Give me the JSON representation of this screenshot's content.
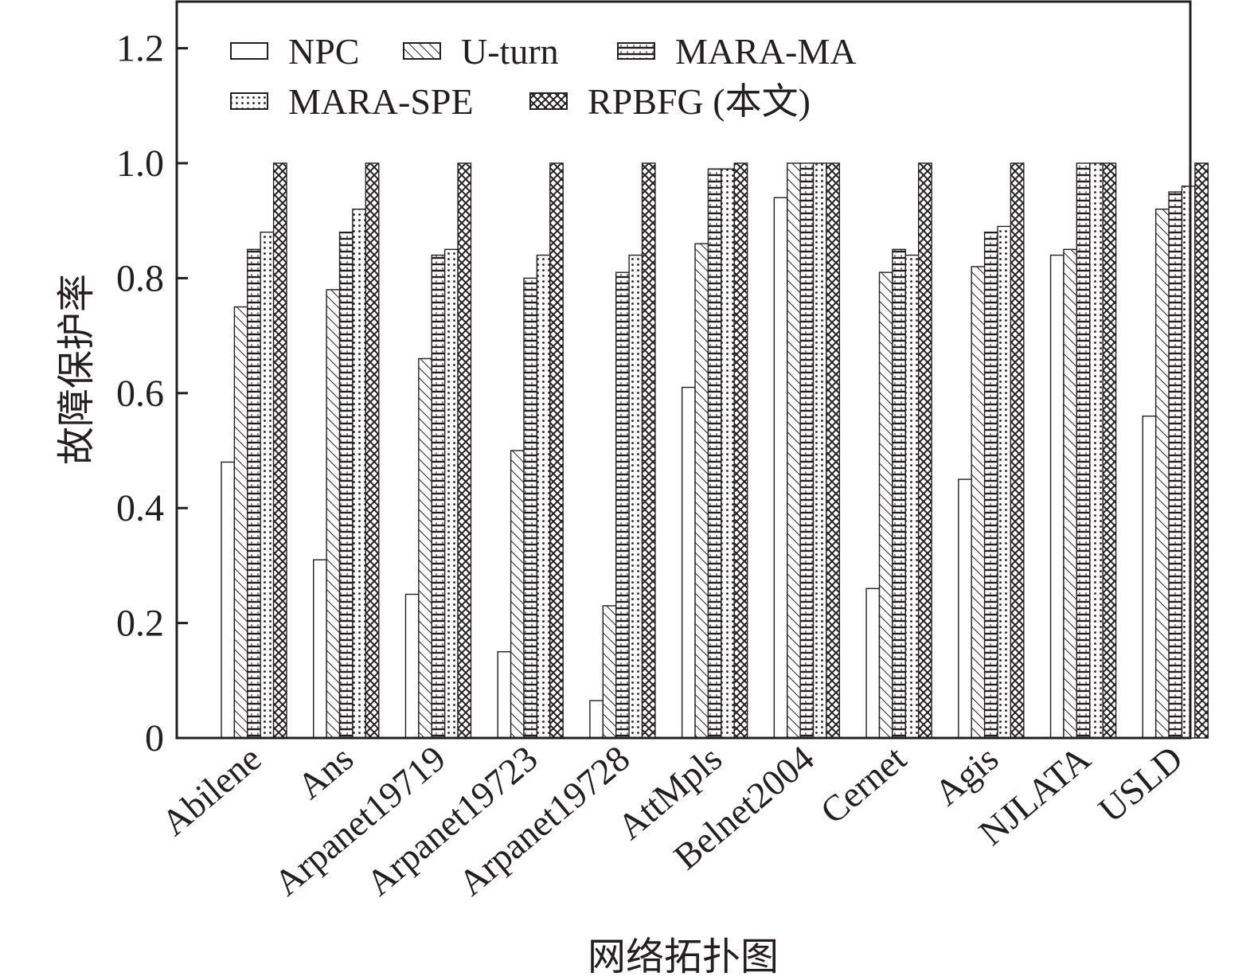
{
  "chart_data": {
    "type": "bar",
    "title": "",
    "xlabel": "网络拓扑图",
    "ylabel": "故障保护率",
    "ylim": [
      0,
      1.2
    ],
    "yticks": [
      0,
      0.2,
      0.4,
      0.6,
      0.8,
      1.0,
      1.2
    ],
    "ytick_labels": [
      "0",
      "0.2",
      "0.4",
      "0.6",
      "0.8",
      "1.0",
      "1.2"
    ],
    "categories": [
      "Abilene",
      "Ans",
      "Arpanet19719",
      "Arpanet19723",
      "Arpanet19728",
      "AttMpls",
      "Belnet2004",
      "Cernet",
      "Agis",
      "NJLATA",
      "USLD"
    ],
    "series": [
      {
        "name": "NPC",
        "pattern": "blank",
        "values": [
          0.48,
          0.31,
          0.25,
          0.15,
          0.065,
          0.61,
          0.94,
          0.26,
          0.45,
          0.84,
          0.56
        ]
      },
      {
        "name": "U-turn",
        "pattern": "diagonal",
        "values": [
          0.75,
          0.78,
          0.66,
          0.5,
          0.23,
          0.86,
          1.0,
          0.81,
          0.82,
          0.85,
          0.92
        ]
      },
      {
        "name": "MARA-MA",
        "pattern": "horizontal",
        "values": [
          0.85,
          0.88,
          0.84,
          0.8,
          0.81,
          0.99,
          1.0,
          0.85,
          0.88,
          1.0,
          0.95
        ]
      },
      {
        "name": "MARA-SPE",
        "pattern": "dotted",
        "values": [
          0.88,
          0.92,
          0.85,
          0.84,
          0.84,
          0.99,
          1.0,
          0.84,
          0.89,
          1.0,
          0.96
        ]
      },
      {
        "name": "RPBFG (本文)",
        "pattern": "crosshatch",
        "values": [
          1.0,
          1.0,
          1.0,
          1.0,
          1.0,
          1.0,
          1.0,
          1.0,
          1.0,
          1.0,
          1.0
        ]
      }
    ],
    "legend_position": "top-left",
    "grid": false,
    "colors": {
      "axis": "#231f20",
      "bar_stroke": "#231f20",
      "bar_fill": "#ffffff"
    }
  }
}
